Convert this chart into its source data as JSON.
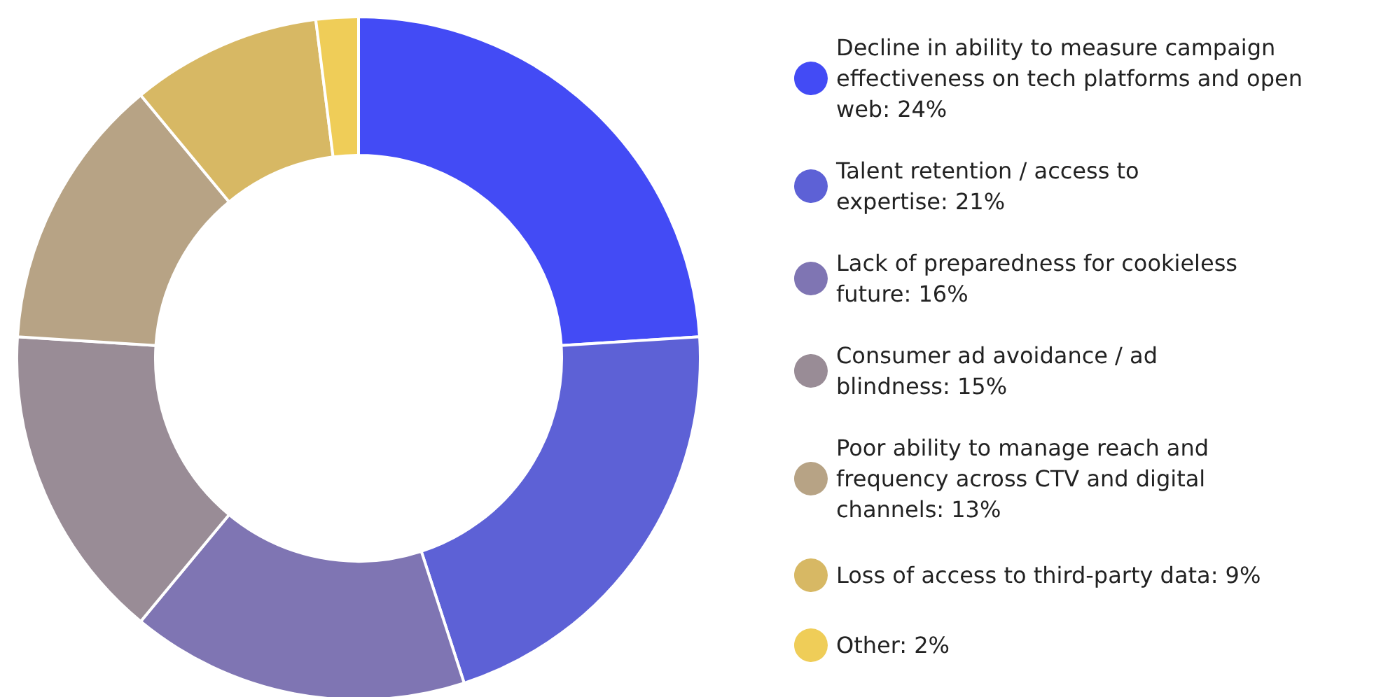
{
  "chart_data": {
    "type": "donut",
    "categories": [
      "Decline in ability to measure campaign effectiveness on tech platforms and open web",
      "Talent retention / access to expertise",
      "Lack of preparedness for cookieless future",
      "Consumer ad avoidance / ad blindness",
      "Poor ability to manage reach and frequency across CTV and digital channels",
      "Loss of access to third-party data",
      "Other"
    ],
    "values": [
      24,
      21,
      16,
      15,
      13,
      9,
      2
    ],
    "value_labels": [
      "24%",
      "21%",
      "16%",
      "15%",
      "13%",
      "9%",
      "2%"
    ],
    "colors": [
      "#434bf5",
      "#5d61d6",
      "#7f75b3",
      "#998c96",
      "#b7a385",
      "#d7b864",
      "#efcd58"
    ],
    "legend": "right"
  }
}
